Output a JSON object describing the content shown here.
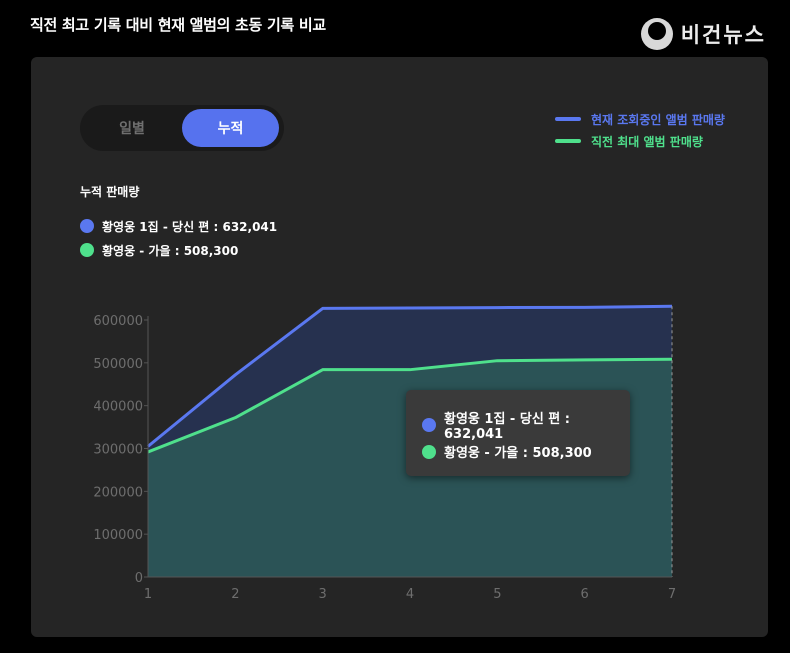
{
  "page": {
    "title": "직전 최고 기록 대비 현재 앨범의 초동 기록 비교"
  },
  "brand": {
    "logo_text": "비건뉴스",
    "icon": "bigeon-news-logo-icon"
  },
  "toggle": {
    "options": [
      "일별",
      "누적"
    ],
    "selected": "누적"
  },
  "legend": {
    "items": [
      {
        "label": "현재 조회중인 앨범 판매량",
        "color": "#5a78f0"
      },
      {
        "label": "직전 최대 앨범 판매량",
        "color": "#4fe08c"
      }
    ]
  },
  "section": {
    "title": "누적 판매량"
  },
  "summary": {
    "items": [
      {
        "label": "황영웅 1집 - 당신 편 : 632,041",
        "color": "#5a78f0"
      },
      {
        "label": "황영웅 - 가을 : 508,300",
        "color": "#4fe08c"
      }
    ]
  },
  "tooltip": {
    "items": [
      {
        "label": "황영웅 1집 - 당신 편 : 632,041",
        "color": "#5a78f0"
      },
      {
        "label": "황영웅 - 가을 : 508,300",
        "color": "#4fe08c"
      }
    ]
  },
  "chart_data": {
    "type": "area",
    "x": [
      1,
      2,
      3,
      4,
      5,
      6,
      7
    ],
    "x_ticks": [
      "1",
      "2",
      "3",
      "4",
      "5",
      "6",
      "7"
    ],
    "ylim": [
      0,
      600000
    ],
    "y_ticks": [
      0,
      100000,
      200000,
      300000,
      400000,
      500000,
      600000
    ],
    "y_tick_labels": [
      "0",
      "100000",
      "200000",
      "300000",
      "400000",
      "500000",
      "600000"
    ],
    "series": [
      {
        "name": "황영웅 1집 - 당신 편",
        "values": [
          305000,
          472000,
          627000,
          628000,
          629000,
          629500,
          632041
        ],
        "line_color": "#5a78f0",
        "fill_color": "#26314f"
      },
      {
        "name": "황영웅 - 가을",
        "values": [
          292000,
          372000,
          484000,
          484000,
          505000,
          507000,
          508300
        ],
        "line_color": "#4fe08c",
        "fill_color": "#2b5356"
      }
    ],
    "highlight_x": 7,
    "grid": false,
    "legend_position": "top-right"
  }
}
